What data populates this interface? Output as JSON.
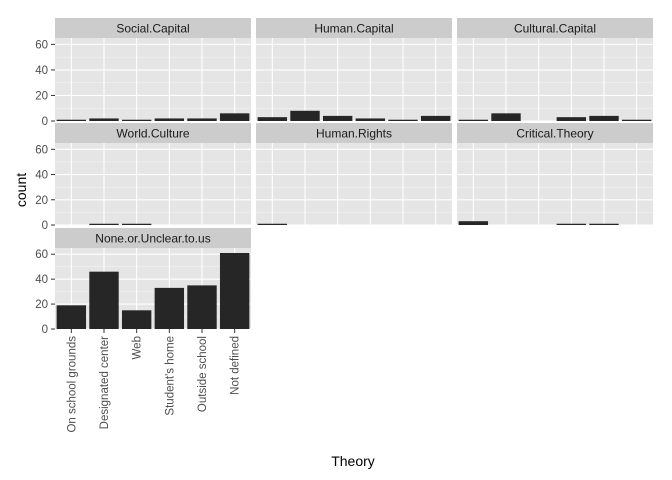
{
  "chart_data": {
    "type": "bar",
    "xlabel": "Theory",
    "ylabel": "count",
    "ylim": [
      0,
      65
    ],
    "yticks": [
      0,
      20,
      40,
      60
    ],
    "grid": true,
    "categories": [
      "On school grounds",
      "Designated center",
      "Web",
      "Student's home",
      "Outside school",
      "Not defined"
    ],
    "panels": [
      {
        "name": "Social.Capital",
        "values": [
          1,
          2,
          1,
          2,
          2,
          6
        ]
      },
      {
        "name": "Human.Capital",
        "values": [
          3,
          8,
          4,
          2,
          1,
          4
        ]
      },
      {
        "name": "Cultural.Capital",
        "values": [
          1,
          6,
          0,
          3,
          4,
          1
        ]
      },
      {
        "name": "World.Culture",
        "values": [
          0,
          1,
          1,
          0,
          0,
          0
        ]
      },
      {
        "name": "Human.Rights",
        "values": [
          1,
          0,
          0,
          0,
          0,
          0
        ]
      },
      {
        "name": "Critical.Theory",
        "values": [
          3,
          0,
          0,
          1,
          1,
          0
        ]
      },
      {
        "name": "None.or.Unclear.to.us",
        "values": [
          19,
          46,
          15,
          33,
          35,
          61
        ]
      }
    ],
    "colors": {
      "bar": "#262626",
      "panel_bg": "#e5e5e5",
      "strip_bg": "#cccccc",
      "grid_major": "#ffffff",
      "grid_minor": "#f2f2f2",
      "tick_text": "#4d4d4d"
    }
  }
}
